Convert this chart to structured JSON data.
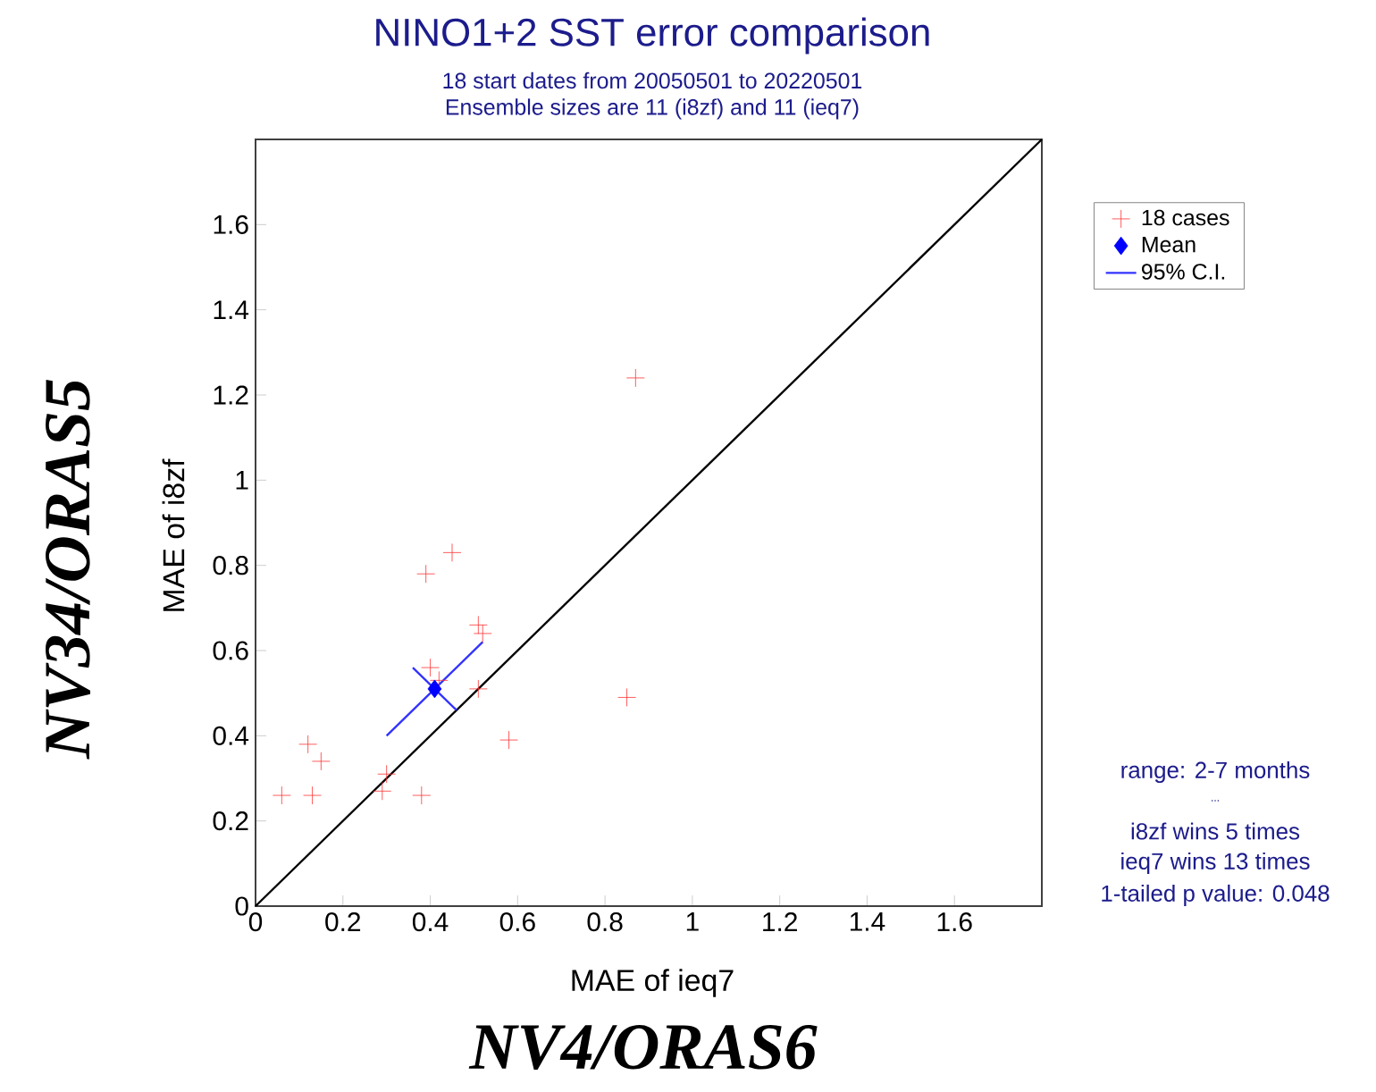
{
  "chart_data": {
    "type": "scatter",
    "title": "NINO1+2 SST error comparison",
    "subtitle": "18 start dates from 20050501 to 20220501",
    "xlabel": "MAE of ieq7",
    "ylabel": "MAE of i8zf",
    "annotations": [
      "Ensemble sizes are 11 (i8zf)  and 11 (ieq7)",
      "range: 2-7 months",
      "...",
      "i8zf wins 5 times",
      "ieq7 wins 13 times",
      "1-tailed p value: 0.048",
      "NV34/ORAS5",
      "NV4/ORAS6"
    ],
    "xlim": [
      0,
      1.8
    ],
    "ylim": [
      0,
      1.8
    ],
    "xticks": [
      0,
      0.2,
      0.4,
      0.6,
      0.8,
      1,
      1.2,
      1.4,
      1.6
    ],
    "yticks": [
      0,
      0.2,
      0.4,
      0.6,
      0.8,
      1,
      1.2,
      1.4,
      1.6
    ],
    "grid": false,
    "legend": "right",
    "series": [
      {
        "type": "line",
        "color": "#000000",
        "marker": "none",
        "line_style": "solid",
        "x": [
          0,
          1.8
        ],
        "values": [
          0,
          1.8
        ]
      },
      {
        "name": "18 cases",
        "color": "#ff3333",
        "marker": "cross",
        "x": [
          0.45,
          0.39,
          0.51,
          0.52,
          0.4,
          0.42,
          0.51,
          0.85,
          0.58,
          0.12,
          0.15,
          0.3,
          0.29,
          0.06,
          0.13,
          0.38,
          0.87
        ],
        "values": [
          0.83,
          0.78,
          0.66,
          0.64,
          0.56,
          0.53,
          0.51,
          0.49,
          0.39,
          0.38,
          0.34,
          0.31,
          0.27,
          0.26,
          0.26,
          0.26,
          1.24
        ]
      },
      {
        "name": "Mean",
        "color": "#0000ff",
        "marker": "diamond",
        "x": [
          0.41
        ],
        "values": [
          0.51
        ]
      },
      {
        "name": "95% C.I.",
        "type": "line",
        "color": "#3333ff",
        "marker": "none",
        "line_style": "solid",
        "x": [
          0.3,
          0.52
        ],
        "values": [
          0.4,
          0.62
        ]
      },
      {
        "type": "line",
        "color": "#3333ff",
        "marker": "none",
        "line_style": "solid",
        "x": [
          0.36,
          0.46
        ],
        "values": [
          0.56,
          0.46
        ]
      }
    ]
  }
}
